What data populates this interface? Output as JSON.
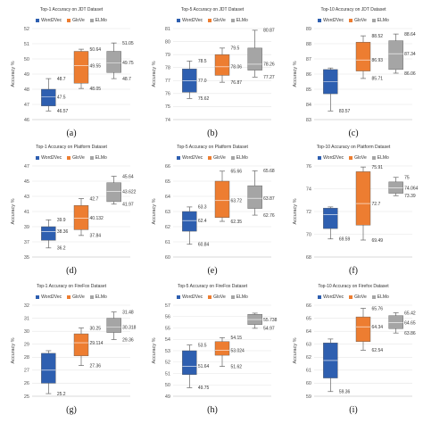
{
  "colors": {
    "Word2Vec": "#2e5fb0",
    "GloVe": "#ed7d31",
    "ELMo": "#a5a5a5"
  },
  "chart_data": [
    {
      "type": "box",
      "caption": "(a)",
      "title": "Top-1 Accuracy on JDT Dataset",
      "ylabel": "Accuracy %",
      "ylim": [
        46,
        52
      ],
      "yticks": [
        46,
        47,
        48,
        49,
        50,
        51,
        52
      ],
      "series": [
        {
          "name": "Word2Vec",
          "min": 46.57,
          "q1": 46.9,
          "median": 47.5,
          "q3": 48.0,
          "max": 48.7,
          "labels": [
            "48.7",
            "47.5",
            "46.57"
          ]
        },
        {
          "name": "GloVe",
          "min": 48.05,
          "q1": 48.4,
          "median": 49.55,
          "q3": 50.5,
          "max": 50.64,
          "labels": [
            "50.64",
            "49.55",
            "48.05"
          ]
        },
        {
          "name": "ELMo",
          "min": 48.7,
          "q1": 49.1,
          "median": 49.75,
          "q3": 50.5,
          "max": 51.05,
          "labels": [
            "51.05",
            "49.75",
            "48.7"
          ]
        }
      ]
    },
    {
      "type": "box",
      "caption": "(b)",
      "title": "Top-5 Accuracy on JDT Dataset",
      "ylabel": "Accuracy %",
      "ylim": [
        74,
        81
      ],
      "yticks": [
        74,
        75,
        76,
        77,
        78,
        79,
        80,
        81
      ],
      "series": [
        {
          "name": "Word2Vec",
          "min": 75.62,
          "q1": 76.1,
          "median": 77.0,
          "q3": 77.9,
          "max": 78.5,
          "labels": [
            "78.5",
            "77.0",
            "75.62"
          ]
        },
        {
          "name": "GloVe",
          "min": 76.87,
          "q1": 77.4,
          "median": 78.06,
          "q3": 79.0,
          "max": 79.5,
          "labels": [
            "79.5",
            "78.06",
            "76.87"
          ]
        },
        {
          "name": "ELMo",
          "min": 77.27,
          "q1": 77.8,
          "median": 78.26,
          "q3": 79.5,
          "max": 80.87,
          "labels": [
            "80.87",
            "78.26",
            "77.27"
          ]
        }
      ]
    },
    {
      "type": "box",
      "caption": "(c)",
      "title": "Top-10 Accuracy on JDT Dataset",
      "ylabel": "Accuracy %",
      "ylim": [
        83,
        89
      ],
      "yticks": [
        83,
        84,
        85,
        86,
        87,
        88,
        89
      ],
      "series": [
        {
          "name": "Word2Vec",
          "min": 83.57,
          "q1": 84.7,
          "median": 85.5,
          "q3": 86.3,
          "max": 86.4,
          "labels": [
            "83.57"
          ]
        },
        {
          "name": "GloVe",
          "min": 85.71,
          "q1": 86.2,
          "median": 86.93,
          "q3": 88.1,
          "max": 88.52,
          "labels": [
            "88.52",
            "86.93",
            "85.71"
          ]
        },
        {
          "name": "ELMo",
          "min": 86.06,
          "q1": 86.3,
          "median": 87.34,
          "q3": 88.2,
          "max": 88.64,
          "labels": [
            "88.64",
            "87.34",
            "86.06"
          ]
        }
      ]
    },
    {
      "type": "box",
      "caption": "(d)",
      "title": "Top-1 Accuracy on Platform Dataset",
      "ylabel": "Accuracy %",
      "ylim": [
        35,
        47
      ],
      "yticks": [
        35,
        37,
        39,
        41,
        43,
        45,
        47
      ],
      "series": [
        {
          "name": "Word2Vec",
          "min": 36.2,
          "q1": 37.2,
          "median": 38.36,
          "q3": 39.0,
          "max": 39.9,
          "labels": [
            "39.9",
            "38.36",
            "36.2"
          ]
        },
        {
          "name": "GloVe",
          "min": 37.84,
          "q1": 38.6,
          "median": 40.132,
          "q3": 41.8,
          "max": 42.7,
          "labels": [
            "42.7",
            "40.132",
            "37.84"
          ]
        },
        {
          "name": "ELMo",
          "min": 41.97,
          "q1": 42.3,
          "median": 43.622,
          "q3": 44.8,
          "max": 45.64,
          "labels": [
            "45.64",
            "43.622",
            "41.97"
          ]
        }
      ]
    },
    {
      "type": "box",
      "caption": "(e)",
      "title": "Top-5 Accuracy on Platform Dataset",
      "ylabel": "Accuracy %",
      "ylim": [
        60,
        66
      ],
      "yticks": [
        60,
        61,
        62,
        63,
        64,
        65,
        66
      ],
      "series": [
        {
          "name": "Word2Vec",
          "min": 60.84,
          "q1": 61.7,
          "median": 62.4,
          "q3": 63.0,
          "max": 63.3,
          "labels": [
            "63.3",
            "62.4",
            "60.84"
          ]
        },
        {
          "name": "GloVe",
          "min": 62.35,
          "q1": 62.6,
          "median": 63.72,
          "q3": 65.0,
          "max": 65.66,
          "labels": [
            "65.66",
            "63.72",
            "62.35"
          ]
        },
        {
          "name": "ELMo",
          "min": 62.76,
          "q1": 63.2,
          "median": 63.87,
          "q3": 64.7,
          "max": 65.68,
          "labels": [
            "65.68",
            "63.87",
            "62.76"
          ]
        }
      ]
    },
    {
      "type": "box",
      "caption": "(f)",
      "title": "Top-10 Accuracy on Platform Dataset",
      "ylabel": "Accuracy %",
      "ylim": [
        68,
        76
      ],
      "yticks": [
        68,
        70,
        72,
        74,
        76
      ],
      "series": [
        {
          "name": "Word2Vec",
          "min": 69.59,
          "q1": 70.5,
          "median": 71.73,
          "q3": 72.3,
          "max": 72.4,
          "labels": [
            "69.59"
          ]
        },
        {
          "name": "GloVe",
          "min": 69.49,
          "q1": 70.8,
          "median": 72.7,
          "q3": 75.5,
          "max": 75.91,
          "labels": [
            "75.91",
            "72.7",
            "69.49"
          ]
        },
        {
          "name": "ELMo",
          "min": 73.39,
          "q1": 73.6,
          "median": 74.064,
          "q3": 74.6,
          "max": 75.0,
          "labels": [
            "75",
            "74.064",
            "73.39"
          ]
        }
      ]
    },
    {
      "type": "box",
      "caption": "(g)",
      "title": "Top-1 Accuracy on FireFox Dataset",
      "ylabel": "Accuracy %",
      "ylim": [
        25,
        32
      ],
      "yticks": [
        25,
        26,
        27,
        28,
        29,
        30,
        31,
        32
      ],
      "series": [
        {
          "name": "Word2Vec",
          "min": 25.2,
          "q1": 26.0,
          "median": 27.0,
          "q3": 28.3,
          "max": 28.5,
          "labels": [
            "25.2"
          ]
        },
        {
          "name": "GloVe",
          "min": 27.36,
          "q1": 28.1,
          "median": 29.114,
          "q3": 29.8,
          "max": 30.25,
          "labels": [
            "30.25",
            "29.114",
            "27.36"
          ]
        },
        {
          "name": "ELMo",
          "min": 29.36,
          "q1": 29.9,
          "median": 30.318,
          "q3": 31.0,
          "max": 31.48,
          "labels": [
            "31.48",
            "30.318",
            "29.36"
          ]
        }
      ]
    },
    {
      "type": "box",
      "caption": "(h)",
      "title": "Top-5 Accuracy on FireFox Dataset",
      "ylabel": "Accuracy %",
      "ylim": [
        49,
        57
      ],
      "yticks": [
        49,
        50,
        51,
        52,
        53,
        54,
        55,
        56,
        57
      ],
      "series": [
        {
          "name": "Word2Vec",
          "min": 49.75,
          "q1": 50.9,
          "median": 51.64,
          "q3": 53.0,
          "max": 53.5,
          "labels": [
            "53.5",
            "51.64",
            "49.75"
          ]
        },
        {
          "name": "GloVe",
          "min": 51.62,
          "q1": 52.6,
          "median": 53.024,
          "q3": 53.8,
          "max": 54.15,
          "labels": [
            "54.15",
            "53.024",
            "51.62"
          ]
        },
        {
          "name": "ELMo",
          "min": 54.97,
          "q1": 55.3,
          "median": 55.738,
          "q3": 56.2,
          "max": 56.3,
          "labels": [
            "55.738",
            "54.97"
          ]
        }
      ]
    },
    {
      "type": "box",
      "caption": "(i)",
      "title": "Top-10 Accuracy on Firefox Dataset",
      "ylabel": "Accuracy %",
      "ylim": [
        59,
        66
      ],
      "yticks": [
        59,
        60,
        61,
        62,
        63,
        64,
        65,
        66
      ],
      "series": [
        {
          "name": "Word2Vec",
          "min": 59.36,
          "q1": 60.4,
          "median": 61.75,
          "q3": 63.1,
          "max": 63.4,
          "labels": [
            "59.36"
          ]
        },
        {
          "name": "GloVe",
          "min": 62.54,
          "q1": 63.2,
          "median": 64.34,
          "q3": 65.1,
          "max": 65.76,
          "labels": [
            "65.76",
            "64.34",
            "62.54"
          ]
        },
        {
          "name": "ELMo",
          "min": 63.86,
          "q1": 64.2,
          "median": 64.65,
          "q3": 65.2,
          "max": 65.42,
          "labels": [
            "65.42",
            "64.65",
            "63.86"
          ]
        }
      ]
    }
  ]
}
